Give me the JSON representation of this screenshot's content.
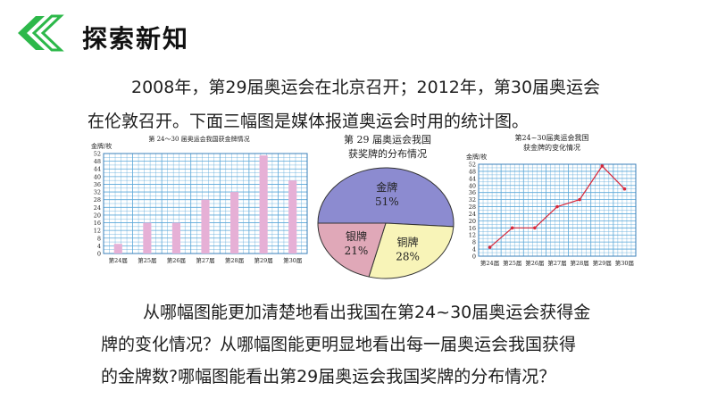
{
  "page": {
    "heading": "探索新知"
  },
  "intro": {
    "line1": "2008年，第29届奥运会在北京召开；2012年，第30届奥运会",
    "line2": "在伦敦召开。下面三幅图是媒体报道奥运会时用的统计图。"
  },
  "question": {
    "line1": "从哪幅图能更加清楚地看出我国在第24~30届奥运会获得金",
    "line2": "牌的变化情况？从哪幅图能更明显地看出每一届奥运会我国获得",
    "line3": "的金牌数?哪幅图能看出第29届奥运会我国奖牌的分布情况？"
  },
  "colors": {
    "accent_green": "#2db84a",
    "grid_blue": "#5aa7d8",
    "bar_pink": "#e6b0d6",
    "line_red": "#d8283a",
    "pie_gold": "#8c8bd0",
    "pie_silver": "#e0a8b8",
    "pie_bronze": "#f8f4b8"
  },
  "chart_data": [
    {
      "type": "bar",
      "title": "第 24～30 届奥运会我国获金牌情况",
      "ylabel": "金牌/枚",
      "categories": [
        "第24届",
        "第25届",
        "第26届",
        "第27届",
        "第28届",
        "第29届",
        "第30届"
      ],
      "values": [
        5,
        16,
        16,
        28,
        32,
        51,
        38
      ],
      "yticks": [
        0,
        4,
        8,
        12,
        16,
        20,
        24,
        28,
        32,
        36,
        40,
        44,
        48,
        52
      ],
      "ylim": [
        0,
        52
      ],
      "grid": true
    },
    {
      "type": "pie",
      "title_line1": "第 29 届奥运会我国",
      "title_line2": "获奖牌的分布情况",
      "slices": [
        {
          "label": "金牌",
          "value": 51,
          "pct": "51%"
        },
        {
          "label": "铜牌",
          "value": 28,
          "pct": "28%"
        },
        {
          "label": "银牌",
          "value": 21,
          "pct": "21%"
        }
      ]
    },
    {
      "type": "line",
      "title_line1": "第24~30届奥运会我国",
      "title_line2": "获金牌的变化情况",
      "ylabel": "金牌/枚",
      "categories": [
        "第24届",
        "第25届",
        "第26届",
        "第27届",
        "第28届",
        "第29届",
        "第30届"
      ],
      "values": [
        5,
        16,
        16,
        28,
        32,
        51,
        38
      ],
      "yticks": [
        0,
        4,
        8,
        12,
        16,
        20,
        24,
        28,
        32,
        36,
        40,
        44,
        48,
        52
      ],
      "ylim": [
        0,
        52
      ],
      "grid": true
    }
  ]
}
